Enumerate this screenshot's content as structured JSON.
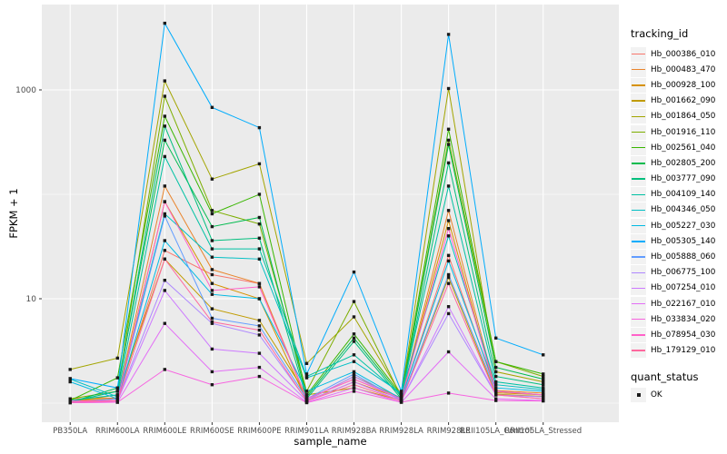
{
  "chart_data": {
    "type": "line",
    "title": "",
    "xlabel": "sample_name",
    "ylabel": "FPKM + 1",
    "y_scale": "log10",
    "y_axis": {
      "major_ticks": [
        10,
        1000
      ],
      "minor_gridlines": [
        1,
        100
      ],
      "ylim_log10": [
        -0.17,
        3.8
      ]
    },
    "grid": "on",
    "legend_position": "right",
    "categories": [
      "PB350LA",
      "RRIM600LA",
      "RRIM600LE",
      "RRIM600SE",
      "RRIM600PE",
      "RRIM901LA",
      "RRIM928BA",
      "RRIM928LA",
      "RRIM928LE",
      "RRII105LA_Control",
      "RRII105LA_Stressed"
    ],
    "series": [
      {
        "name": "Hb_000386_010",
        "color": "#F8766D",
        "values": [
          1.02,
          1.1,
          29,
          17,
          14,
          1.1,
          1.7,
          1.1,
          26,
          1.3,
          1.2
        ]
      },
      {
        "name": "Hb_000483_470",
        "color": "#E9842C",
        "values": [
          1.1,
          1.12,
          120,
          19,
          14,
          1.06,
          1.8,
          1.12,
          70,
          1.32,
          1.25
        ]
      },
      {
        "name": "Hb_000928_100",
        "color": "#D69100",
        "values": [
          1.06,
          1.1,
          85,
          14,
          10,
          1.05,
          1.6,
          1.1,
          56,
          1.26,
          1.2
        ]
      },
      {
        "name": "Hb_001662_090",
        "color": "#C09B00",
        "values": [
          1.03,
          1.2,
          24,
          8,
          6.2,
          1.2,
          1.4,
          1.06,
          16,
          1.22,
          1.16
        ]
      },
      {
        "name": "Hb_001864_050",
        "color": "#A3A500",
        "values": [
          2.1,
          2.7,
          1220,
          140,
          196,
          2.4,
          6.7,
          1.2,
          1030,
          2.0,
          1.6
        ]
      },
      {
        "name": "Hb_001916_110",
        "color": "#7CAE00",
        "values": [
          1.1,
          1.3,
          870,
          70,
          52,
          1.3,
          9.4,
          1.15,
          330,
          2.5,
          1.8
        ]
      },
      {
        "name": "Hb_002561_040",
        "color": "#39B600",
        "values": [
          1.06,
          1.75,
          560,
          65,
          100,
          1.2,
          4.6,
          1.2,
          420,
          2.5,
          1.9
        ]
      },
      {
        "name": "Hb_002805_200",
        "color": "#00BB4E",
        "values": [
          1.02,
          1.4,
          330,
          49,
          60,
          1.15,
          4.2,
          1.15,
          300,
          2.2,
          1.7
        ]
      },
      {
        "name": "Hb_003777_090",
        "color": "#00BF7D",
        "values": [
          1.03,
          1.3,
          450,
          36,
          38,
          1.1,
          3.9,
          1.1,
          200,
          1.8,
          1.5
        ]
      },
      {
        "name": "Hb_004109_140",
        "color": "#00C1A3",
        "values": [
          1.06,
          1.2,
          230,
          30,
          30,
          1.8,
          2.9,
          1.2,
          120,
          1.6,
          1.4
        ]
      },
      {
        "name": "Hb_004346_050",
        "color": "#00BFC4",
        "values": [
          1.7,
          1.15,
          65,
          25,
          24,
          1.75,
          2.5,
          1.25,
          40,
          1.5,
          1.35
        ]
      },
      {
        "name": "Hb_005227_030",
        "color": "#00B9E3",
        "values": [
          1.6,
          1.1,
          36,
          11,
          10,
          1.3,
          2.0,
          1.1,
          23,
          1.4,
          1.3
        ]
      },
      {
        "name": "Hb_005305_140",
        "color": "#00ACFC",
        "values": [
          1.72,
          1.4,
          4350,
          680,
          435,
          1.9,
          18,
          1.3,
          3400,
          4.2,
          2.9
        ]
      },
      {
        "name": "Hb_005888_060",
        "color": "#619CFF",
        "values": [
          1.02,
          1.1,
          62,
          6.5,
          5.5,
          1.1,
          1.9,
          1.06,
          17,
          1.3,
          1.2
        ]
      },
      {
        "name": "Hb_006775_100",
        "color": "#AE87FF",
        "values": [
          1.02,
          1.06,
          15,
          5.8,
          4.5,
          1.06,
          1.8,
          1.06,
          7.2,
          1.2,
          1.15
        ]
      },
      {
        "name": "Hb_007254_010",
        "color": "#CD79FF",
        "values": [
          1.01,
          1.05,
          12,
          3.3,
          3.0,
          1.05,
          1.6,
          1.05,
          8.4,
          1.2,
          1.1
        ]
      },
      {
        "name": "Hb_022167_010",
        "color": "#E36EF6",
        "values": [
          1.01,
          1.02,
          5.8,
          2.0,
          2.2,
          1.02,
          1.4,
          1.02,
          3.1,
          1.1,
          1.06
        ]
      },
      {
        "name": "Hb_033834_020",
        "color": "#F763E0",
        "values": [
          1.01,
          1.02,
          2.1,
          1.5,
          1.8,
          1.01,
          1.3,
          1.02,
          1.25,
          1.06,
          1.05
        ]
      },
      {
        "name": "Hb_078954_030",
        "color": "#FF61C9",
        "values": [
          1.05,
          1.06,
          85,
          12,
          13,
          1.1,
          1.7,
          1.1,
          47,
          1.3,
          1.2
        ]
      },
      {
        "name": "Hb_179129_010",
        "color": "#FF689E",
        "values": [
          1.02,
          1.05,
          24,
          6,
          5,
          1.05,
          1.5,
          1.05,
          14,
          1.2,
          1.1
        ]
      }
    ],
    "legend": {
      "tracking_title": "tracking_id",
      "quant_title": "quant_status",
      "quant_value": "OK"
    }
  },
  "style": {
    "panel_bg": "#EBEBEB",
    "grid_color": "#FFFFFF",
    "tick_label_color": "#4D4D4D",
    "point_color": "#1A1A1A",
    "legend_key_bg": "#F2F2F2"
  }
}
